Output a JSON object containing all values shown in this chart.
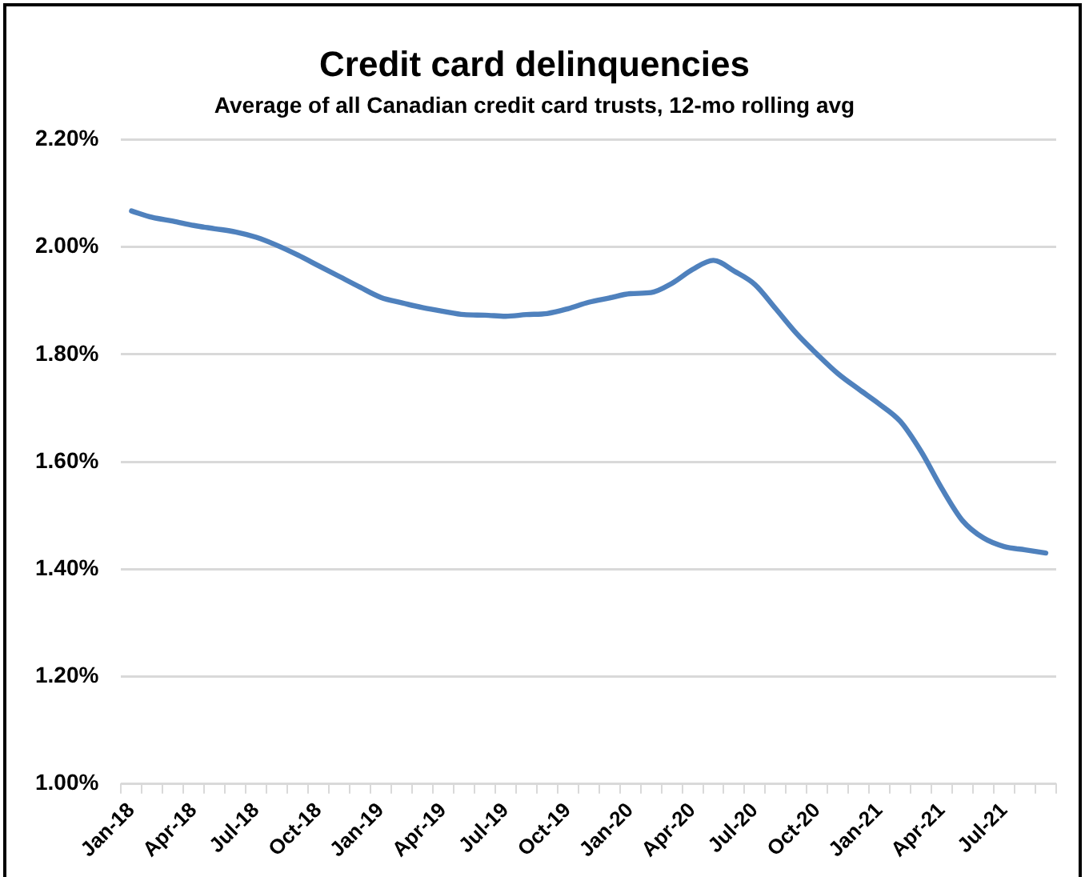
{
  "chart_data": {
    "type": "line",
    "title": "Credit card delinquencies",
    "subtitle": "Average of all Canadian credit card trusts, 12-mo rolling avg",
    "categories": [
      "Jan-18",
      null,
      null,
      "Apr-18",
      null,
      null,
      "Jul-18",
      null,
      null,
      "Oct-18",
      null,
      null,
      "Jan-19",
      null,
      null,
      "Apr-19",
      null,
      null,
      "Jul-19",
      null,
      null,
      "Oct-19",
      null,
      null,
      "Jan-20",
      null,
      null,
      "Apr-20",
      null,
      null,
      "Jul-20",
      null,
      null,
      "Oct-20",
      null,
      null,
      "Jan-21",
      null,
      null,
      "Apr-21",
      null,
      null,
      "Jul-21",
      null,
      null
    ],
    "series": [
      {
        "color": "#4f81bd",
        "values": [
          2.067,
          2.055,
          2.048,
          2.04,
          2.034,
          2.028,
          2.018,
          2.003,
          1.985,
          1.965,
          1.945,
          1.925,
          1.906,
          1.896,
          1.887,
          1.88,
          1.874,
          1.873,
          1.871,
          1.874,
          1.876,
          1.885,
          1.897,
          1.905,
          1.913,
          1.915,
          1.932,
          1.958,
          1.975,
          1.955,
          1.93,
          1.885,
          1.839,
          1.8,
          1.764,
          1.735,
          1.707,
          1.675,
          1.619,
          1.55,
          1.49,
          1.458,
          1.442,
          1.436,
          1.43
        ]
      }
    ],
    "ylim": [
      1.0,
      2.2
    ],
    "yticks": [
      {
        "value": 1.0,
        "label": "1.00%"
      },
      {
        "value": 1.2,
        "label": "1.20%"
      },
      {
        "value": 1.4,
        "label": "1.40%"
      },
      {
        "value": 1.6,
        "label": "1.60%"
      },
      {
        "value": 1.8,
        "label": "1.80%"
      },
      {
        "value": 2.0,
        "label": "2.00%"
      },
      {
        "value": 2.2,
        "label": "2.20%"
      }
    ],
    "grid": "y",
    "legend": false,
    "marker": "none",
    "line_style": "solid"
  }
}
